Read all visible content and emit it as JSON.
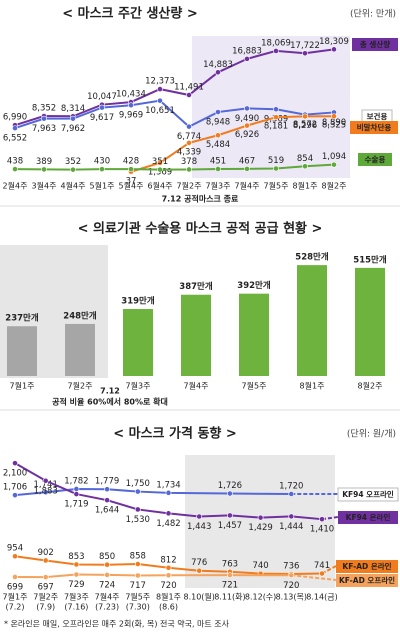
{
  "chart_data": [
    {
      "type": "line",
      "title": "< 마스크 주간 생산량 >",
      "unit": "(단위: 만개)",
      "categories": [
        "2월4주",
        "3월4주",
        "4월4주",
        "5월1주",
        "5월4주",
        "6월4주",
        "7월2주",
        "7월3주",
        "7월4주",
        "7월5주",
        "8월1주",
        "8월2주"
      ],
      "annotation": "7.12 공적마스크 종료",
      "ylim": [
        0,
        20000
      ],
      "series": [
        {
          "name": "총 생산량",
          "color": "#7030a0",
          "values": [
            6990,
            8352,
            8314,
            10047,
            10434,
            12373,
            11491,
            14883,
            16883,
            18069,
            17722,
            18309
          ],
          "value_labels": [
            "6,990",
            "8,352",
            "8,314",
            "10,047",
            "10,434",
            "12,373",
            "11,491",
            "14,883",
            "16,883",
            "18,069",
            "17,722",
            "18,309"
          ]
        },
        {
          "name": "보건용",
          "color": "#5468d8",
          "values": [
            6552,
            7963,
            7962,
            9617,
            9969,
            10651,
            6774,
            8948,
            9490,
            9369,
            8572,
            8890
          ],
          "value_labels": [
            "6,552",
            "7,963",
            "7,962",
            "9,617",
            "9,969",
            "10,651",
            "6,774",
            "8,948",
            "9,490",
            "9,369",
            "8,572",
            "8,890"
          ]
        },
        {
          "name": "비말차단용",
          "color": "#f07c1e",
          "values": [
            null,
            null,
            null,
            null,
            37,
            1369,
            4339,
            5484,
            6926,
            8181,
            8296,
            8325
          ],
          "value_labels": [
            null,
            null,
            null,
            null,
            "37",
            "1,369",
            "4,339",
            "5,484",
            "6,926",
            "8,181",
            "8,296",
            "8,325"
          ]
        },
        {
          "name": "수술용",
          "color": "#5fa83a",
          "values": [
            438,
            389,
            352,
            430,
            428,
            351,
            378,
            451,
            467,
            519,
            854,
            1094
          ],
          "value_labels": [
            "438",
            "389",
            "352",
            "430",
            "428",
            "351",
            "378",
            "451",
            "467",
            "519",
            "854",
            "1,094"
          ]
        }
      ]
    },
    {
      "type": "bar",
      "title": "< 의료기관 수술용 마스크 공적 공급 현황 >",
      "categories": [
        "7월1주",
        "7월2주",
        "7월3주",
        "7월4주",
        "7월5주",
        "8월1주",
        "8월2주"
      ],
      "values": [
        237,
        248,
        319,
        387,
        392,
        528,
        515
      ],
      "value_labels": [
        "237만개",
        "248만개",
        "319만개",
        "387만개",
        "392만개",
        "528만개",
        "515만개"
      ],
      "colors": [
        "#a6a6a6",
        "#a6a6a6",
        "#6fb33f",
        "#6fb33f",
        "#6fb33f",
        "#6fb33f",
        "#6fb33f"
      ],
      "annotations": [
        "7.12",
        "공적 비율 60%에서 80%로 확대"
      ],
      "ylim": [
        0,
        600
      ]
    },
    {
      "type": "line",
      "title": "< 마스크 가격 동향 >",
      "unit": "(단위: 원/개)",
      "categories": [
        "7월1주",
        "7월2주",
        "7월3주",
        "7월4주",
        "7월5주",
        "8월1주",
        "8.10(월)",
        "8.11(화)",
        "8.12(수)",
        "8.13(목)",
        "8.14(금)"
      ],
      "dates": [
        "(7.2)",
        "(7.9)",
        "(7.16)",
        "(7.23)",
        "(7.30)",
        "(8.6)",
        null,
        null,
        null,
        null,
        null
      ],
      "ylim": [
        600,
        2200
      ],
      "footnote": "* 온라인은 매일, 오프라인은 매주 2회(화, 목) 전국 약국, 마트 조사",
      "series": [
        {
          "name": "KF94 오프라인",
          "color": "#5468d8",
          "values": [
            1706,
            1741,
            1782,
            1779,
            1750,
            1734,
            null,
            1726,
            null,
            1720,
            null
          ],
          "value_labels": [
            "1,706",
            "1,741",
            "1,782",
            "1,779",
            "1,750",
            "1,734",
            null,
            "1,726",
            null,
            "1,720",
            null
          ]
        },
        {
          "name": "KF94 온라인",
          "color": "#7030a0",
          "values": [
            2100,
            1883,
            1719,
            1644,
            1530,
            1482,
            1443,
            1457,
            1429,
            1444,
            1410
          ],
          "value_labels": [
            "2,100",
            "1,883",
            "1,719",
            "1,644",
            "1,530",
            "1,482",
            "1,443",
            "1,457",
            "1,429",
            "1,444",
            "1,410"
          ]
        },
        {
          "name": "KF-AD 온라인",
          "color": "#f07c1e",
          "values": [
            954,
            902,
            853,
            850,
            858,
            812,
            776,
            763,
            740,
            736,
            741
          ]
        },
        {
          "name": "KF-AD 오프라인",
          "color": "#f5a35c",
          "values": [
            699,
            697,
            729,
            724,
            717,
            720,
            null,
            721,
            null,
            720,
            null
          ]
        }
      ]
    }
  ]
}
